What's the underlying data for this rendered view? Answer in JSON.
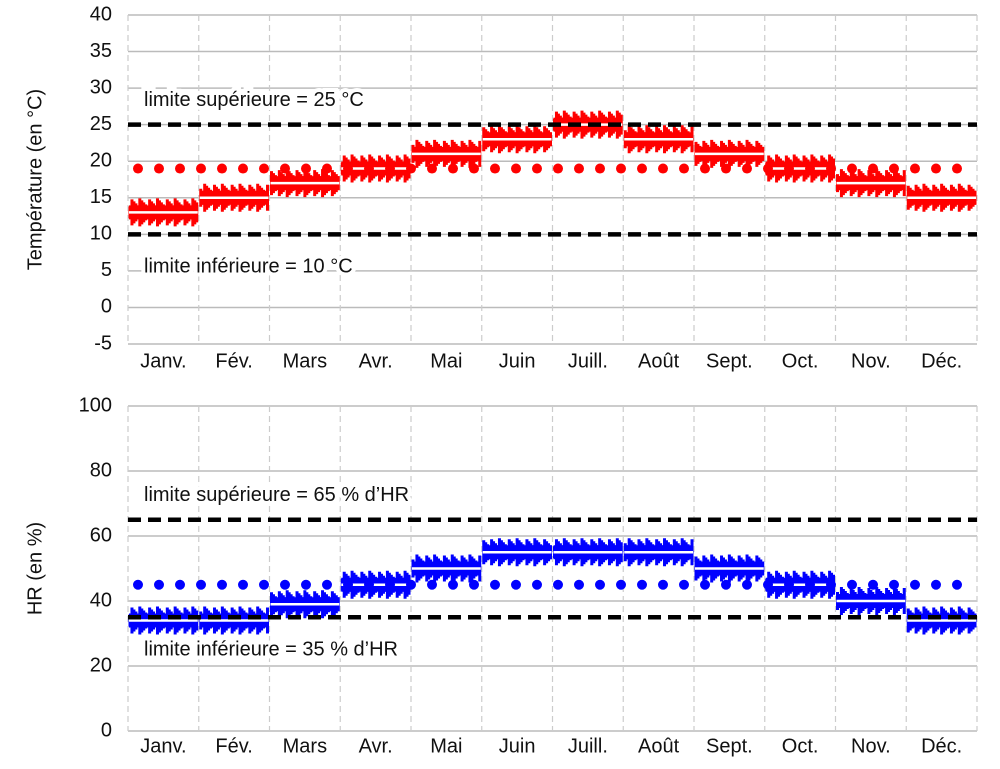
{
  "chart_data": [
    {
      "type": "step",
      "y_label": "Température (en °C)",
      "categories": [
        "Janv.",
        "Fév.",
        "Mars",
        "Avr.",
        "Mai",
        "Juin",
        "Juill.",
        "Août",
        "Sept.",
        "Oct.",
        "Nov.",
        "Déc."
      ],
      "series": [
        {
          "color": "#ff0000",
          "values": [
            13,
            15,
            17,
            19,
            21,
            23,
            25,
            23,
            21,
            19,
            17,
            15
          ]
        }
      ],
      "ylim": [
        -5,
        40
      ],
      "yticks": [
        -5,
        0,
        5,
        10,
        15,
        20,
        25,
        30,
        35,
        40
      ],
      "grid": true,
      "reference_lines": [
        {
          "value": 25,
          "style": "dashed",
          "color": "#000000",
          "label": "limite supérieure = 25 °C",
          "label_side": "above"
        },
        {
          "value": 10,
          "style": "dashed",
          "color": "#000000",
          "label": "limite inférieure = 10 °C",
          "label_side": "below"
        },
        {
          "value": 19,
          "style": "dotted",
          "color": "#ff0000"
        }
      ]
    },
    {
      "type": "step",
      "y_label": "HR (en %)",
      "categories": [
        "Janv.",
        "Fév.",
        "Mars",
        "Avr.",
        "Mai",
        "Juin",
        "Juill.",
        "Août",
        "Sept.",
        "Oct.",
        "Nov.",
        "Déc."
      ],
      "series": [
        {
          "color": "#0000ff",
          "values": [
            34,
            34,
            39,
            45,
            50,
            55,
            55,
            55,
            50,
            45,
            40,
            34
          ]
        }
      ],
      "ylim": [
        0,
        100
      ],
      "yticks": [
        0,
        20,
        40,
        60,
        80,
        100
      ],
      "grid": true,
      "reference_lines": [
        {
          "value": 65,
          "style": "dashed",
          "color": "#000000",
          "label": "limite supérieure = 65 % d’HR",
          "label_side": "above"
        },
        {
          "value": 35,
          "style": "dashed",
          "color": "#000000",
          "label": "limite inférieure = 35 % d’HR",
          "label_side": "below"
        },
        {
          "value": 45,
          "style": "dotted",
          "color": "#0000ff"
        }
      ]
    }
  ]
}
